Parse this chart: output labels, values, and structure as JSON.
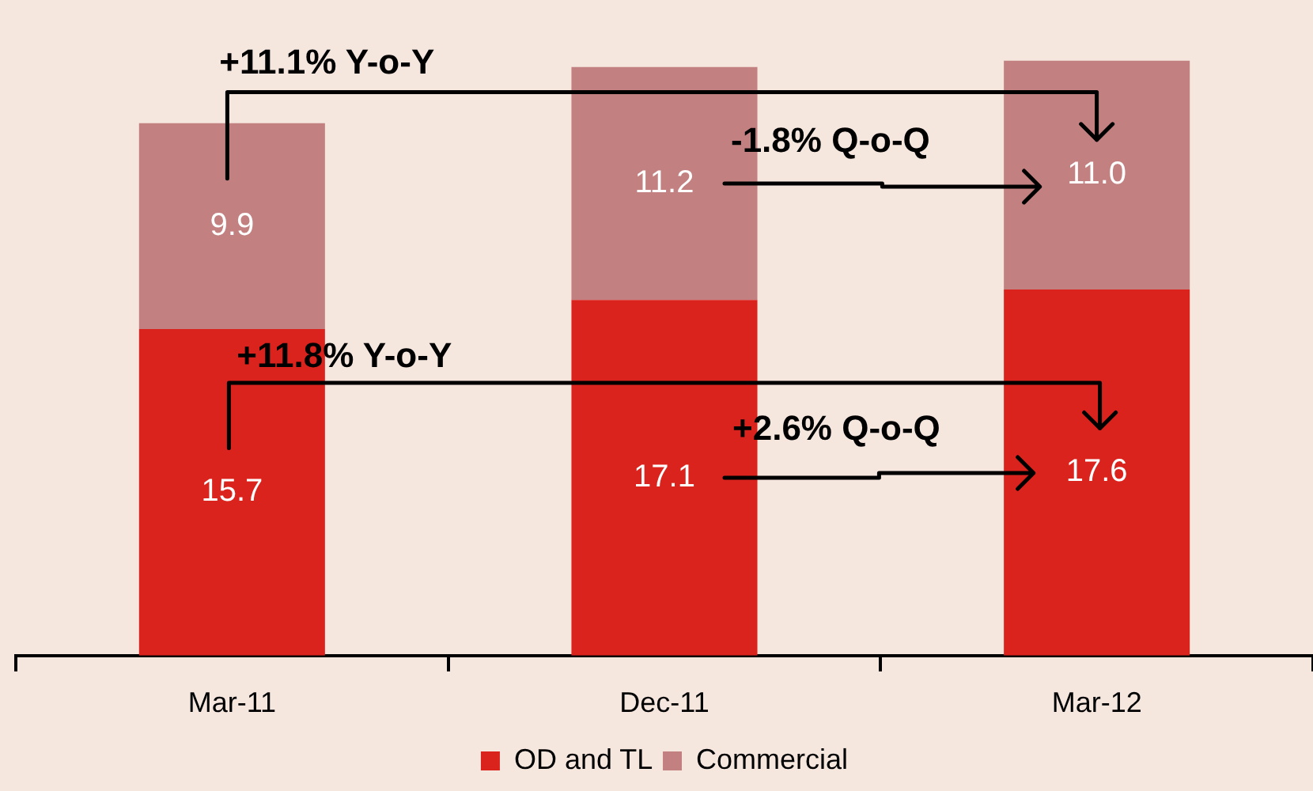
{
  "chart_data": {
    "type": "bar",
    "stacked": true,
    "categories": [
      "Mar-11",
      "Dec-11",
      "Mar-12"
    ],
    "series": [
      {
        "name": "OD and TL",
        "color": "#db231e",
        "values": [
          15.7,
          17.1,
          17.6
        ],
        "value_labels": [
          "15.7",
          "17.1",
          "17.6"
        ]
      },
      {
        "name": "Commercial",
        "color": "#c38080",
        "values": [
          9.9,
          11.2,
          11.0
        ],
        "value_labels": [
          "9.9",
          "11.2",
          "11.0"
        ]
      }
    ],
    "legend": "bottom",
    "grid": false,
    "annotations": [
      "+11.1% Y-o-Y",
      "-1.8% Q-o-Q",
      "+11.8% Y-o-Y",
      "+2.6% Q-o-Q"
    ]
  }
}
